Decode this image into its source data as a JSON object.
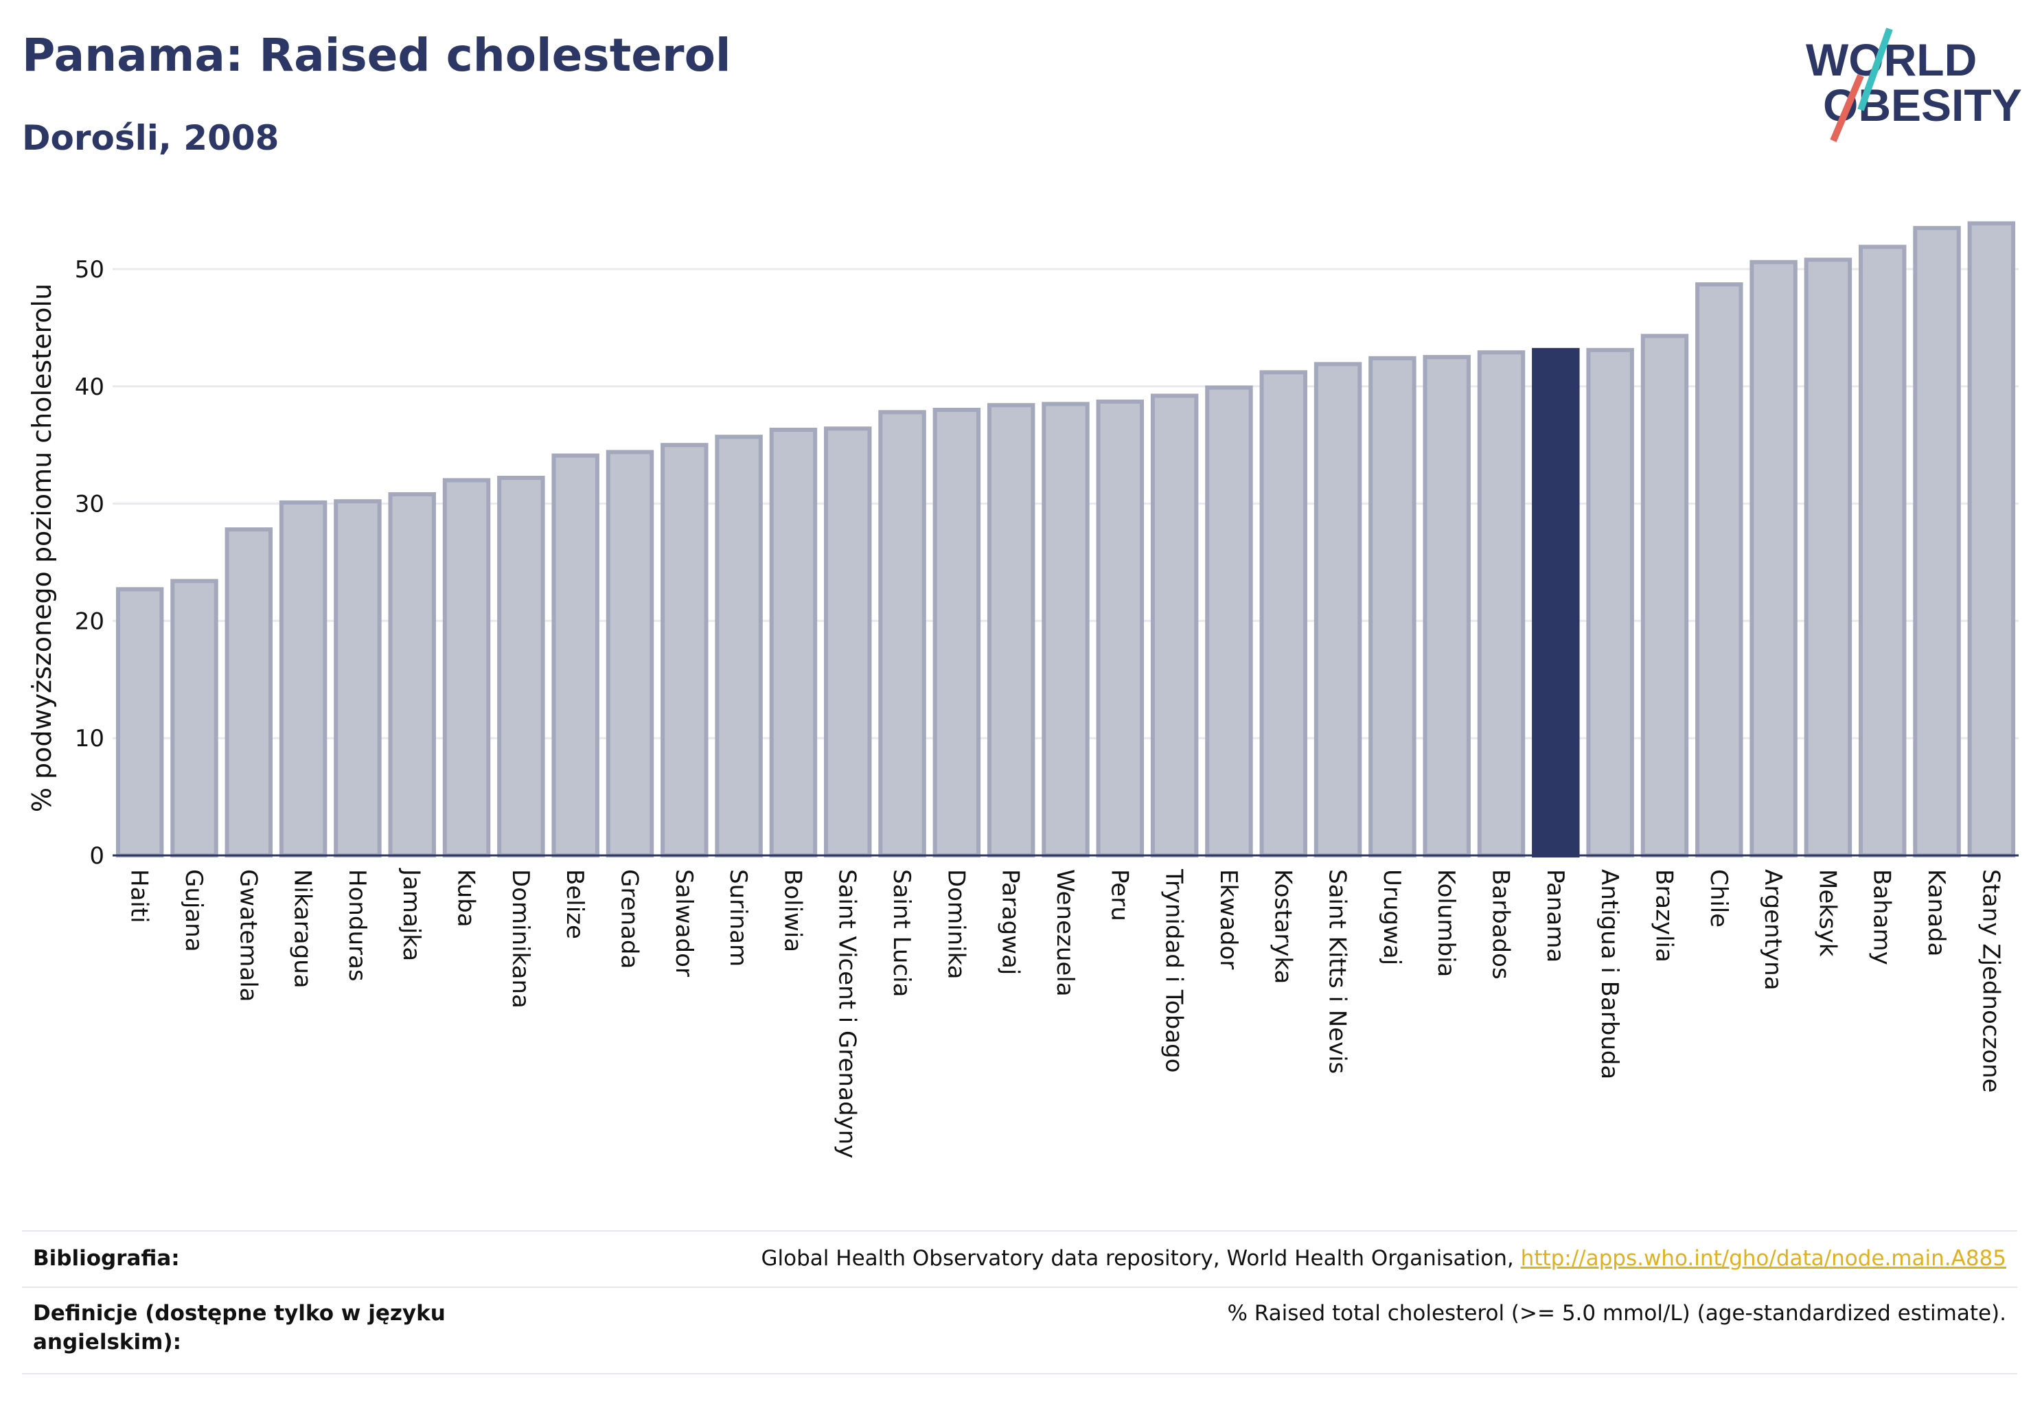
{
  "header": {
    "title": "Panama: Raised cholesterol",
    "subtitle": "Dorośli, 2008"
  },
  "logo": {
    "line1": "WORLD",
    "line2": "OBESITY",
    "colors": {
      "text": "#2d3766",
      "slash_teal": "#3bbfbf",
      "slash_red": "#e4665a"
    }
  },
  "chart_data": {
    "type": "bar",
    "ylabel": "% podwyższonego poziomu cholesterolu",
    "ylim": [
      0,
      54
    ],
    "yticks": [
      0,
      10,
      20,
      30,
      40,
      50
    ],
    "grid": true,
    "categories": [
      "Haiti",
      "Gujana",
      "Gwatemala",
      "Nikaragua",
      "Honduras",
      "Jamajka",
      "Kuba",
      "Dominikana",
      "Belize",
      "Grenada",
      "Salwador",
      "Surinam",
      "Boliwia",
      "Saint Vicent i Grenadyny",
      "Saint Lucia",
      "Dominika",
      "Paragwaj",
      "Wenezuela",
      "Peru",
      "Trynidad i Tobago",
      "Ekwador",
      "Kostaryka",
      "Saint Kitts i Nevis",
      "Urugwaj",
      "Kolumbia",
      "Barbados",
      "Panama",
      "Antigua i Barbuda",
      "Brazylia",
      "Chile",
      "Argentyna",
      "Meksyk",
      "Bahamy",
      "Kanada",
      "Stany Zjednoczone"
    ],
    "values": [
      22.7,
      23.4,
      27.8,
      30.1,
      30.2,
      30.8,
      32.0,
      32.2,
      34.1,
      34.4,
      35.0,
      35.7,
      36.3,
      36.4,
      37.8,
      38.0,
      38.4,
      38.5,
      38.7,
      39.2,
      39.9,
      41.2,
      41.9,
      42.4,
      42.5,
      42.9,
      43.1,
      43.1,
      44.3,
      48.7,
      50.6,
      50.8,
      51.9,
      53.5,
      53.9
    ],
    "highlight": "Panama",
    "colors": {
      "bar": "#bfc2cf",
      "bar_border": "#a3a8bd",
      "highlight": "#2d3766",
      "grid": "#e9e9ee",
      "axis": "#2d3766"
    }
  },
  "footer": {
    "bibliography_label": "Bibliografia:",
    "bibliography_text": "Global Health Observatory data repository, World Health Organisation, ",
    "bibliography_link": "http://apps.who.int/gho/data/node.main.A885",
    "definitions_label": "Definicje (dostępne tylko w języku angielskim):",
    "definitions_text": "% Raised total cholesterol (>= 5.0 mmol/L) (age-standardized estimate)."
  }
}
